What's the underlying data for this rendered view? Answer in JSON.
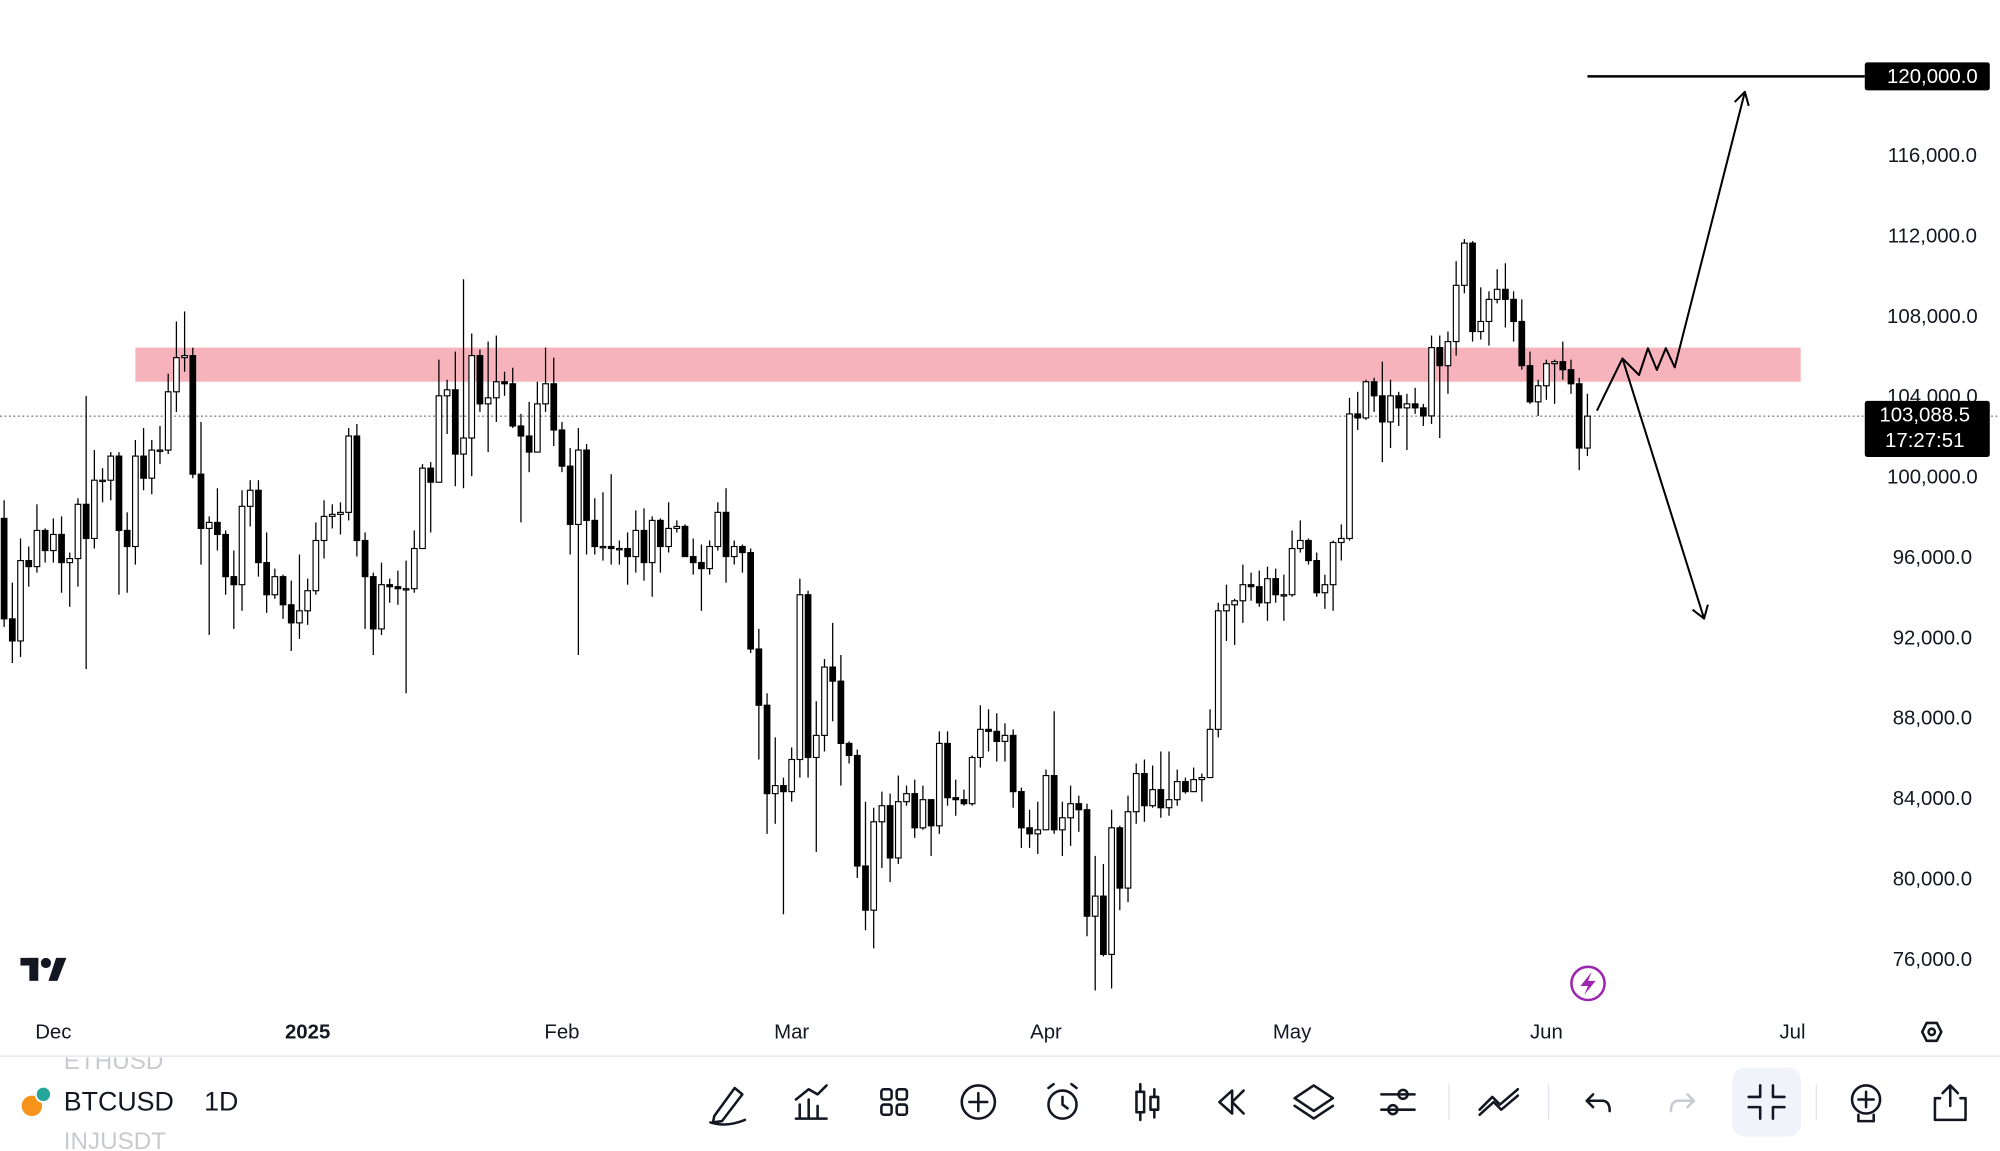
{
  "chart_data": {
    "type": "candlestick",
    "up_color": "#ffffff",
    "down_color": "#000000",
    "ohlc": [
      [
        98000,
        98900,
        92600,
        93000
      ],
      [
        93000,
        94800,
        90800,
        91900
      ],
      [
        91900,
        97000,
        91100,
        95900
      ],
      [
        95900,
        96600,
        94600,
        95600
      ],
      [
        95600,
        98700,
        95300,
        97400
      ],
      [
        97400,
        97500,
        95800,
        96400
      ],
      [
        96400,
        98000,
        95800,
        97200
      ],
      [
        97200,
        98100,
        94300,
        95800
      ],
      [
        95800,
        96300,
        93600,
        96000
      ],
      [
        96000,
        99000,
        94600,
        98700
      ],
      [
        98700,
        104100,
        90500,
        97000
      ],
      [
        97000,
        101400,
        96500,
        99900
      ],
      [
        99900,
        100500,
        98800,
        99900
      ],
      [
        99900,
        101300,
        98900,
        101100
      ],
      [
        101100,
        101300,
        94200,
        97400
      ],
      [
        97400,
        98300,
        94300,
        96600
      ],
      [
        96600,
        101900,
        95700,
        101100
      ],
      [
        101100,
        102500,
        99400,
        100000
      ],
      [
        100000,
        101900,
        99200,
        101400
      ],
      [
        101400,
        102600,
        100700,
        101400
      ],
      [
        101400,
        105200,
        101200,
        104300
      ],
      [
        104300,
        107800,
        103300,
        106000
      ],
      [
        106000,
        108300,
        105300,
        106100
      ],
      [
        106100,
        106500,
        100000,
        100200
      ],
      [
        100200,
        102800,
        95700,
        97500
      ],
      [
        97500,
        98100,
        92200,
        97800
      ],
      [
        97800,
        99500,
        96400,
        97200
      ],
      [
        97200,
        97400,
        94200,
        95100
      ],
      [
        95100,
        96400,
        92500,
        94700
      ],
      [
        94700,
        99400,
        93400,
        98600
      ],
      [
        98600,
        99900,
        97600,
        99400
      ],
      [
        99400,
        99900,
        95100,
        95800
      ],
      [
        95800,
        97300,
        93300,
        94200
      ],
      [
        94200,
        95500,
        94000,
        95100
      ],
      [
        95100,
        95200,
        93000,
        93700
      ],
      [
        93700,
        94900,
        91400,
        92800
      ],
      [
        92800,
        96200,
        92000,
        93400
      ],
      [
        93400,
        95000,
        92700,
        94400
      ],
      [
        94400,
        97800,
        94200,
        96900
      ],
      [
        96900,
        98900,
        96000,
        98100
      ],
      [
        98100,
        98700,
        97500,
        98200
      ],
      [
        98200,
        98800,
        97200,
        98300
      ],
      [
        98300,
        102500,
        97900,
        102100
      ],
      [
        102100,
        102700,
        96100,
        96900
      ],
      [
        96900,
        97300,
        92500,
        95100
      ],
      [
        95100,
        95300,
        91200,
        92500
      ],
      [
        92500,
        95800,
        92200,
        94700
      ],
      [
        94700,
        95000,
        93800,
        94600
      ],
      [
        94600,
        95400,
        93700,
        94500
      ],
      [
        94500,
        95900,
        89300,
        94500
      ],
      [
        94500,
        97400,
        94300,
        96500
      ],
      [
        96500,
        100700,
        96500,
        100500
      ],
      [
        100500,
        100800,
        97300,
        99800
      ],
      [
        99800,
        105900,
        99800,
        104100
      ],
      [
        104100,
        104900,
        102200,
        104400
      ],
      [
        104400,
        106300,
        99600,
        101200
      ],
      [
        101200,
        109900,
        99500,
        102000
      ],
      [
        102000,
        107200,
        100100,
        106100
      ],
      [
        106100,
        106400,
        103300,
        103700
      ],
      [
        103700,
        106800,
        101300,
        104000
      ],
      [
        104000,
        107100,
        102800,
        104800
      ],
      [
        104800,
        105300,
        104100,
        104700
      ],
      [
        104700,
        105500,
        102500,
        102600
      ],
      [
        102600,
        103200,
        97800,
        102100
      ],
      [
        102100,
        103800,
        100300,
        101300
      ],
      [
        101300,
        104800,
        101300,
        103700
      ],
      [
        103700,
        106500,
        103300,
        104700
      ],
      [
        104700,
        106000,
        101600,
        102400
      ],
      [
        102400,
        102800,
        100300,
        100600
      ],
      [
        100600,
        101500,
        96200,
        97700
      ],
      [
        97700,
        102500,
        91200,
        101400
      ],
      [
        101400,
        101700,
        96200,
        97900
      ],
      [
        97900,
        99000,
        96200,
        96600
      ],
      [
        96600,
        99300,
        95900,
        96600
      ],
      [
        96600,
        100200,
        95700,
        96500
      ],
      [
        96500,
        96900,
        95700,
        96500
      ],
      [
        96500,
        97300,
        94700,
        96100
      ],
      [
        96100,
        98400,
        95300,
        97400
      ],
      [
        97400,
        98500,
        94900,
        95800
      ],
      [
        95800,
        98100,
        94100,
        97900
      ],
      [
        97900,
        98000,
        95300,
        96600
      ],
      [
        96600,
        98800,
        96300,
        97500
      ],
      [
        97500,
        97900,
        97300,
        97600
      ],
      [
        97600,
        97700,
        96100,
        96100
      ],
      [
        96100,
        97000,
        95200,
        95800
      ],
      [
        95800,
        96700,
        93400,
        95500
      ],
      [
        95500,
        96900,
        95200,
        96600
      ],
      [
        96600,
        98800,
        96400,
        98300
      ],
      [
        98300,
        99500,
        94800,
        96100
      ],
      [
        96100,
        96900,
        95700,
        96600
      ],
      [
        96600,
        96700,
        95300,
        96300
      ],
      [
        96300,
        96500,
        91300,
        91500
      ],
      [
        91500,
        92500,
        86000,
        88700
      ],
      [
        88700,
        89300,
        82300,
        84300
      ],
      [
        84300,
        87100,
        82800,
        84700
      ],
      [
        84700,
        85100,
        78300,
        84400
      ],
      [
        84400,
        86600,
        83900,
        86000
      ],
      [
        86000,
        95000,
        85100,
        94200
      ],
      [
        94200,
        94400,
        85100,
        86100
      ],
      [
        86100,
        88900,
        81400,
        87200
      ],
      [
        87200,
        91000,
        86400,
        90600
      ],
      [
        90600,
        92800,
        87900,
        89900
      ],
      [
        89900,
        91200,
        84700,
        86800
      ],
      [
        86800,
        86900,
        85800,
        86200
      ],
      [
        86200,
        86500,
        80100,
        80700
      ],
      [
        80700,
        83900,
        77500,
        78500
      ],
      [
        78500,
        83600,
        76600,
        82900
      ],
      [
        82900,
        84400,
        80600,
        83700
      ],
      [
        83700,
        84300,
        79900,
        81100
      ],
      [
        81100,
        85200,
        80800,
        83900
      ],
      [
        83900,
        84700,
        83700,
        84300
      ],
      [
        84300,
        85000,
        82100,
        82600
      ],
      [
        82600,
        84700,
        82500,
        84000
      ],
      [
        84000,
        84000,
        81200,
        82700
      ],
      [
        82700,
        87400,
        82300,
        86800
      ],
      [
        86800,
        87400,
        83700,
        84100
      ],
      [
        84100,
        85000,
        83200,
        84000
      ],
      [
        84000,
        84500,
        83700,
        83800
      ],
      [
        83800,
        86200,
        83700,
        86100
      ],
      [
        86100,
        88700,
        85600,
        87500
      ],
      [
        87500,
        88500,
        86400,
        87400
      ],
      [
        87400,
        88300,
        85900,
        86900
      ],
      [
        86900,
        87800,
        85900,
        87200
      ],
      [
        87200,
        87500,
        83600,
        84400
      ],
      [
        84400,
        84600,
        81600,
        82600
      ],
      [
        82600,
        83500,
        81600,
        82300
      ],
      [
        82300,
        83900,
        81300,
        82500
      ],
      [
        82500,
        85500,
        82500,
        85200
      ],
      [
        85200,
        88400,
        82300,
        82500
      ],
      [
        82500,
        83900,
        81200,
        83100
      ],
      [
        83100,
        84700,
        81700,
        83800
      ],
      [
        83800,
        84200,
        82400,
        83500
      ],
      [
        83500,
        83800,
        77200,
        78200
      ],
      [
        78200,
        81200,
        74500,
        79200
      ],
      [
        79200,
        80800,
        76200,
        76300
      ],
      [
        76300,
        83500,
        74600,
        82600
      ],
      [
        82600,
        82700,
        78500,
        79600
      ],
      [
        79600,
        84200,
        78900,
        83400
      ],
      [
        83400,
        85800,
        82800,
        85300
      ],
      [
        85300,
        86000,
        82900,
        83700
      ],
      [
        83700,
        85700,
        83600,
        84500
      ],
      [
        84500,
        86400,
        83100,
        83600
      ],
      [
        83600,
        86400,
        83200,
        84000
      ],
      [
        84000,
        85500,
        83700,
        84900
      ],
      [
        84900,
        85100,
        84300,
        84400
      ],
      [
        84400,
        85600,
        84400,
        85000
      ],
      [
        85000,
        85300,
        83900,
        85100
      ],
      [
        85100,
        88500,
        85100,
        87500
      ],
      [
        87500,
        93800,
        87100,
        93400
      ],
      [
        93400,
        94700,
        91900,
        93700
      ],
      [
        93700,
        94000,
        91700,
        93900
      ],
      [
        93900,
        95700,
        92800,
        94700
      ],
      [
        94700,
        95300,
        93900,
        94600
      ],
      [
        94600,
        95400,
        93600,
        93800
      ],
      [
        93800,
        95600,
        92900,
        95000
      ],
      [
        95000,
        95500,
        93800,
        94200
      ],
      [
        94200,
        95200,
        92900,
        94200
      ],
      [
        94200,
        97400,
        94100,
        96500
      ],
      [
        96500,
        97900,
        96300,
        96900
      ],
      [
        96900,
        97000,
        95700,
        95900
      ],
      [
        95900,
        96300,
        94100,
        94300
      ],
      [
        94300,
        95200,
        93500,
        94700
      ],
      [
        94700,
        96900,
        93400,
        96800
      ],
      [
        96800,
        97700,
        95900,
        97000
      ],
      [
        97000,
        104000,
        96900,
        103200
      ],
      [
        103200,
        104300,
        102400,
        103000
      ],
      [
        103000,
        104900,
        102900,
        104800
      ],
      [
        104800,
        105000,
        103300,
        104100
      ],
      [
        104100,
        105800,
        100800,
        102800
      ],
      [
        102800,
        104900,
        101500,
        104100
      ],
      [
        104100,
        104300,
        102600,
        103500
      ],
      [
        103500,
        104200,
        101400,
        103700
      ],
      [
        103700,
        104500,
        103200,
        103500
      ],
      [
        103500,
        103700,
        102600,
        103100
      ],
      [
        103100,
        107100,
        102700,
        106500
      ],
      [
        106500,
        107100,
        102000,
        105600
      ],
      [
        105600,
        107300,
        104200,
        106800
      ],
      [
        106800,
        110800,
        106100,
        109600
      ],
      [
        109600,
        111900,
        109200,
        111700
      ],
      [
        111700,
        111800,
        106800,
        107300
      ],
      [
        107300,
        109500,
        106900,
        107800
      ],
      [
        107800,
        109300,
        106600,
        108900
      ],
      [
        108900,
        110400,
        108700,
        109400
      ],
      [
        109400,
        110700,
        107500,
        108900
      ],
      [
        108900,
        109300,
        106800,
        107800
      ],
      [
        107800,
        108900,
        105400,
        105600
      ],
      [
        105600,
        106300,
        103700,
        103800
      ],
      [
        103800,
        104900,
        103100,
        104600
      ],
      [
        104600,
        105900,
        103900,
        105700
      ],
      [
        105700,
        105900,
        103700,
        105800
      ],
      [
        105800,
        106800,
        104900,
        105400
      ],
      [
        105400,
        105900,
        104200,
        104700
      ],
      [
        104700,
        105000,
        100400,
        101500
      ],
      [
        101500,
        104200,
        101100,
        103088.5
      ]
    ],
    "xlim": [
      -0.5,
      226.5
    ],
    "xticks": [
      {
        "value": 6,
        "label": "Dec"
      },
      {
        "value": 37,
        "label": "2025"
      },
      {
        "value": 68,
        "label": "Feb"
      },
      {
        "value": 96,
        "label": "Mar"
      },
      {
        "value": 127,
        "label": "Apr"
      },
      {
        "value": 157,
        "label": "May"
      },
      {
        "value": 188,
        "label": "Jun"
      },
      {
        "value": 218,
        "label": "Jul"
      }
    ],
    "ylim": [
      73650,
      123800
    ],
    "yticks": [
      {
        "value": 76000,
        "label": "76,000.0"
      },
      {
        "value": 80000,
        "label": "80,000.0"
      },
      {
        "value": 84000,
        "label": "84,000.0"
      },
      {
        "value": 88000,
        "label": "88,000.0"
      },
      {
        "value": 92000,
        "label": "92,000.0"
      },
      {
        "value": 96000,
        "label": "96,000.0"
      },
      {
        "value": 100000,
        "label": "100,000.0"
      },
      {
        "value": 104000,
        "label": "104,000.0"
      },
      {
        "value": 108000,
        "label": "108,000.0"
      },
      {
        "value": 112000,
        "label": "112,000.0"
      },
      {
        "value": 116000,
        "label": "116,000.0"
      }
    ],
    "last_price": {
      "value": 103088.5,
      "label": "103,088.5"
    },
    "countdown": "17:27:51",
    "zone": {
      "from": 16,
      "to": 219,
      "low": 104800,
      "high": 106500,
      "color": "#f7b3bc"
    },
    "hline": {
      "value": 120000,
      "label": "120,000.0",
      "from": 193
    }
  },
  "toolbar": {
    "symbol_above": "ETHUSD",
    "symbol": "BTCUSD",
    "symbol_below": "INJUSDT",
    "interval": "1D"
  }
}
